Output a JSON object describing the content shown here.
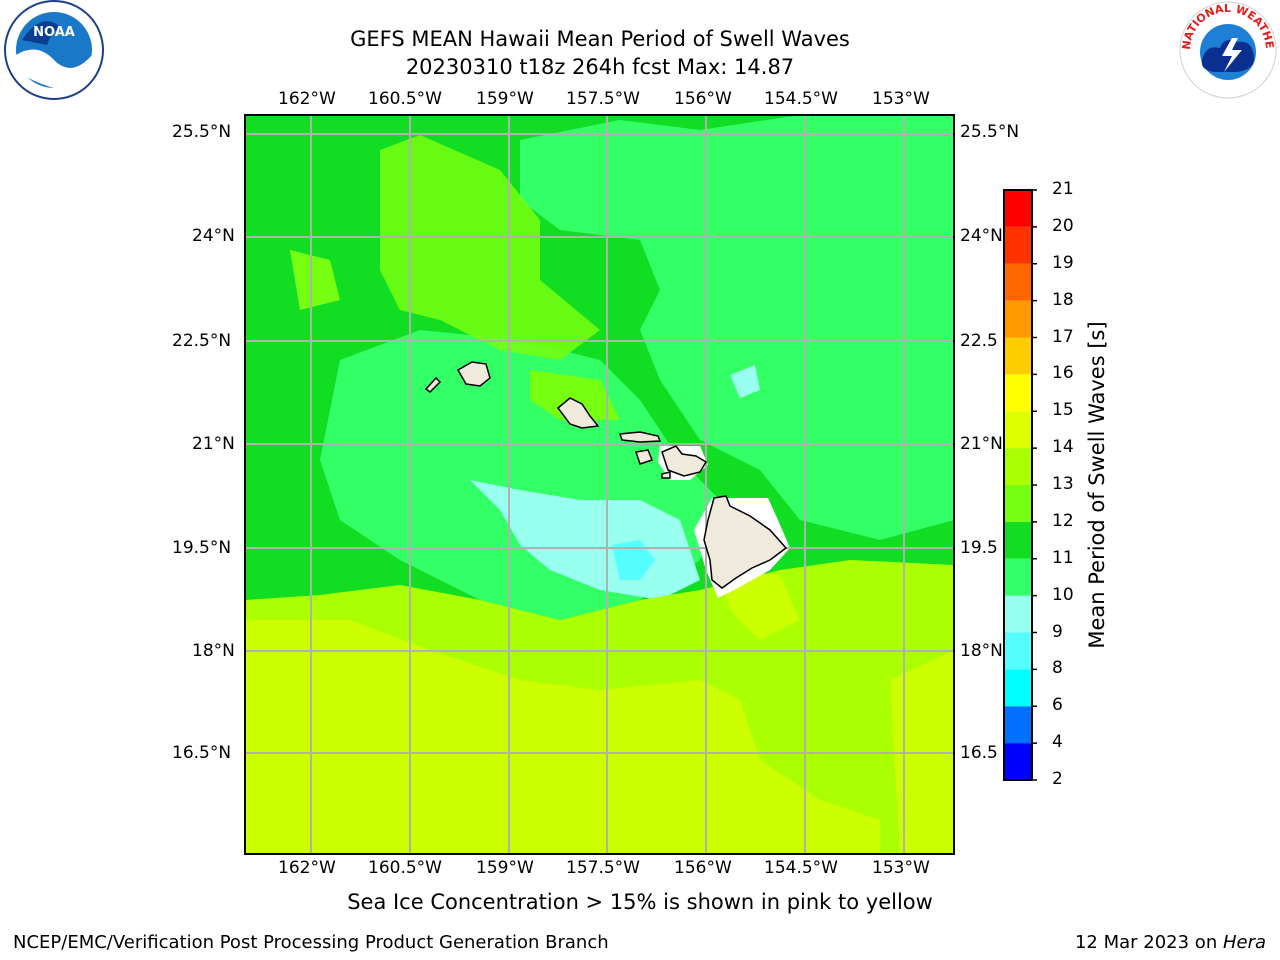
{
  "title": {
    "line1": "GEFS MEAN Hawaii Mean Period of Swell Waves",
    "line2": "20230310 t18z 264h fcst   Max: 14.87"
  },
  "map": {
    "lon_ticks": [
      "162°W",
      "160.5°W",
      "159°W",
      "157.5°W",
      "156°W",
      "154.5°W",
      "153°W"
    ],
    "lat_ticks": [
      "25.5°N",
      "24°N",
      "22.5°N",
      "21°N",
      "19.5°N",
      "18°N",
      "16.5°N"
    ],
    "lat_ticks_right": [
      "25.5°N",
      "24°N",
      "22.5",
      "21°N",
      "19.5",
      "18°N",
      "16.5"
    ],
    "colors": {
      "ocean_green": "#33e63a",
      "ocean_lime": "#99ee11",
      "ocean_yellow": "#ccff00",
      "land": "#efeadc"
    }
  },
  "colorbar": {
    "title": "Mean Period of Swell Waves [s]",
    "levels": [
      "2",
      "4",
      "6",
      "8",
      "9",
      "10",
      "11",
      "12",
      "13",
      "14",
      "15",
      "16",
      "17",
      "18",
      "19",
      "20",
      "21"
    ],
    "colors": [
      "#0000ff",
      "#0070ff",
      "#00ffff",
      "#55ffff",
      "#99ffee",
      "#33ff66",
      "#11dd22",
      "#77ff11",
      "#aaff00",
      "#ddff00",
      "#ffff00",
      "#ffcc00",
      "#ff9900",
      "#ff6600",
      "#ff3300",
      "#ff0000"
    ]
  },
  "caption": "Sea Ice Concentration > 15% is shown in pink to yellow",
  "footer": {
    "left": "NCEP/EMC/Verification Post Processing Product Generation Branch",
    "right_prefix": "12 Mar 2023 on ",
    "right_host": "Hera"
  },
  "logos": {
    "noaa": "NOAA",
    "nws": "NATIONAL WEATHER SERVICE"
  }
}
